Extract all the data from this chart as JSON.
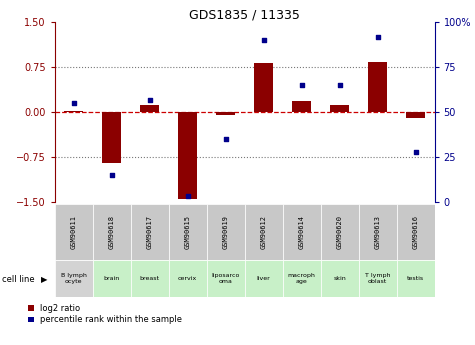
{
  "title": "GDS1835 / 11335",
  "samples": [
    "GSM90611",
    "GSM90618",
    "GSM90617",
    "GSM90615",
    "GSM90619",
    "GSM90612",
    "GSM90614",
    "GSM90620",
    "GSM90613",
    "GSM90616"
  ],
  "cell_lines": [
    "B lymph\nocyte",
    "brain",
    "breast",
    "cervix",
    "liposarco\noma",
    "liver",
    "macroph\nage",
    "skin",
    "T lymph\noblast",
    "testis"
  ],
  "cell_bg_first": "#d3d3d3",
  "cell_bg_rest": "#c8f0c8",
  "sample_box_bg": "#c8c8c8",
  "log2_ratio": [
    0.02,
    -0.85,
    0.12,
    -1.45,
    -0.05,
    0.82,
    0.18,
    0.12,
    0.83,
    -0.1
  ],
  "percentile_rank": [
    55,
    15,
    57,
    3,
    35,
    90,
    65,
    65,
    92,
    28
  ],
  "ylim": [
    -1.5,
    1.5
  ],
  "yticks_left": [
    -1.5,
    -0.75,
    0,
    0.75,
    1.5
  ],
  "yticks_right": [
    0,
    25,
    50,
    75,
    100
  ],
  "bar_color": "#8b0000",
  "point_color": "#00008b",
  "zero_line_color": "#cc0000",
  "dotted_line_color": "#777777",
  "legend_label_red": "log2 ratio",
  "legend_label_blue": "percentile rank within the sample",
  "cell_line_label": "cell line",
  "bar_width": 0.5
}
